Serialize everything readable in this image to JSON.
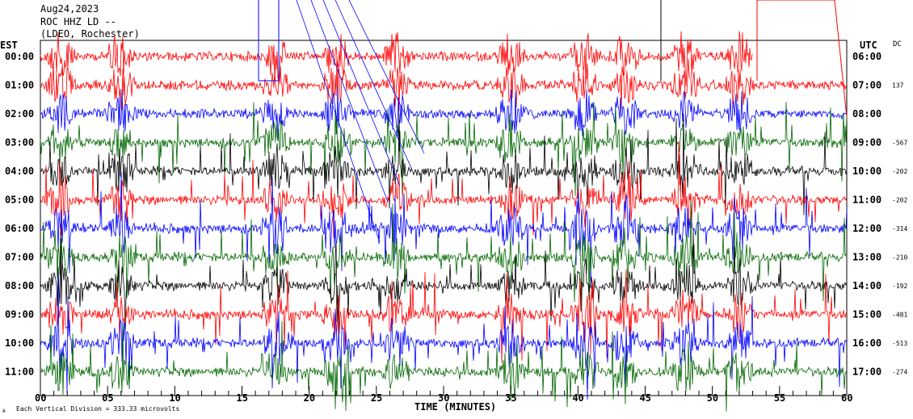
{
  "header": {
    "date": "Aug24,2023",
    "station": "ROC HHZ LD --",
    "network": "(LDEO, Rochester)",
    "left_tz": "EST",
    "right_tz": "UTC",
    "dc_label": "DC"
  },
  "footer": {
    "scale_text": "Each Vertical Division =  333.33 microvolts",
    "corner_mark": "A"
  },
  "colors": {
    "red": "#ff0000",
    "green": "#006600",
    "black": "#000000",
    "blue": "#0000ff"
  },
  "chart_data": {
    "type": "line",
    "title": "ROC HHZ LD --",
    "xlabel": "TIME (MINUTES)",
    "xlim": [
      0,
      60
    ],
    "x_ticks": [
      "00",
      "05",
      "10",
      "15",
      "20",
      "25",
      "30",
      "35",
      "40",
      "45",
      "50",
      "55",
      "60"
    ],
    "rows": [
      {
        "est": "00:00",
        "utc": "06:00",
        "dc": "",
        "color": "red"
      },
      {
        "est": "01:00",
        "utc": "07:00",
        "dc": "137",
        "color": "red"
      },
      {
        "est": "02:00",
        "utc": "08:00",
        "dc": "",
        "color": "blue"
      },
      {
        "est": "03:00",
        "utc": "09:00",
        "dc": "-567",
        "color": "green"
      },
      {
        "est": "04:00",
        "utc": "10:00",
        "dc": "-202",
        "color": "black"
      },
      {
        "est": "05:00",
        "utc": "11:00",
        "dc": "-202",
        "color": "red"
      },
      {
        "est": "06:00",
        "utc": "12:00",
        "dc": "-314",
        "color": "blue"
      },
      {
        "est": "07:00",
        "utc": "13:00",
        "dc": "-210",
        "color": "green"
      },
      {
        "est": "08:00",
        "utc": "14:00",
        "dc": "-192",
        "color": "black"
      },
      {
        "est": "09:00",
        "utc": "15:00",
        "dc": "-481",
        "color": "red"
      },
      {
        "est": "10:00",
        "utc": "16:00",
        "dc": "-513",
        "color": "blue"
      },
      {
        "est": "11:00",
        "utc": "17:00",
        "dc": "-274",
        "color": "green"
      }
    ]
  }
}
